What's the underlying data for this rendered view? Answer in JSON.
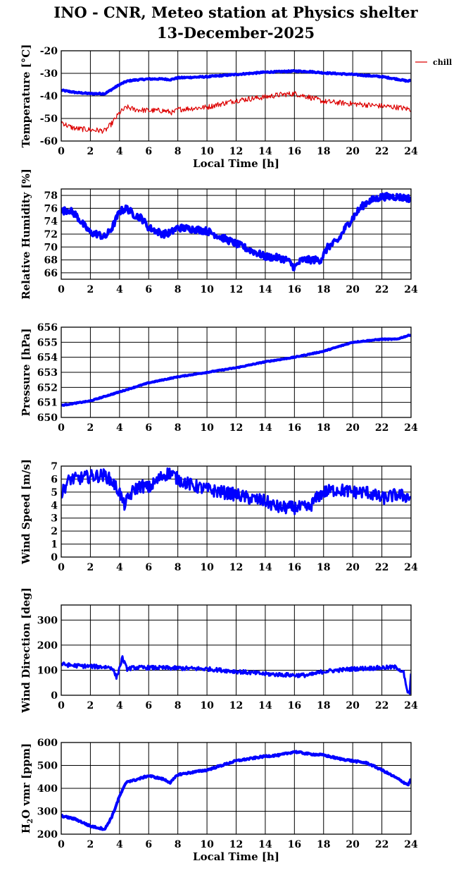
{
  "title_line1": "INO - CNR, Meteo station at Physics shelter",
  "title_line2": "13-December-2025",
  "colors": {
    "series": "#0000ff",
    "chill": "#dd0000",
    "grid": "#000000"
  },
  "chart_data": [
    {
      "id": "temperature",
      "type": "line",
      "ylabel": "Temperature [°C]",
      "xlabel": "Local Time [h]",
      "xlim": [
        0,
        24
      ],
      "xticks": [
        0,
        2,
        4,
        6,
        8,
        10,
        12,
        14,
        16,
        18,
        20,
        22,
        24
      ],
      "ylim": [
        -60,
        -20
      ],
      "yticks": [
        -60,
        -50,
        -40,
        -30,
        -20
      ],
      "legend": [
        "chill"
      ],
      "series": [
        {
          "name": "temperature",
          "color": "#0000ff",
          "width": 4,
          "noise": 0.3,
          "x": [
            0,
            1,
            2,
            3,
            3.5,
            4,
            4.5,
            5,
            6,
            7,
            7.5,
            8,
            10,
            12,
            14,
            16,
            17,
            18,
            20,
            22,
            23,
            23.8,
            24
          ],
          "y": [
            -37.5,
            -38.5,
            -39,
            -39,
            -37,
            -35,
            -33.5,
            -33,
            -32.5,
            -32.5,
            -32.8,
            -32,
            -31.5,
            -30.5,
            -29.5,
            -29,
            -29.2,
            -29.8,
            -30.5,
            -31.5,
            -32.5,
            -33.5,
            -33
          ]
        },
        {
          "name": "chill",
          "color": "#dd0000",
          "width": 1.2,
          "noise": 1.2,
          "x": [
            0,
            0.5,
            1,
            2,
            3,
            3.5,
            4,
            4.5,
            5,
            6,
            7,
            7.7,
            8,
            10,
            12,
            14,
            15,
            16,
            17,
            18,
            20,
            22,
            23,
            24
          ],
          "y": [
            -51.5,
            -53.5,
            -54.5,
            -55,
            -55.5,
            -52,
            -47.5,
            -45,
            -46,
            -46.5,
            -46.5,
            -47.5,
            -46,
            -45,
            -42,
            -40.5,
            -39.5,
            -39,
            -40.5,
            -42.5,
            -43.5,
            -44.5,
            -45,
            -46
          ]
        }
      ]
    },
    {
      "id": "humidity",
      "type": "line",
      "ylabel": "Relative Humidity [%]",
      "xlim": [
        0,
        24
      ],
      "xticks": [
        0,
        2,
        4,
        6,
        8,
        10,
        12,
        14,
        16,
        18,
        20,
        22,
        24
      ],
      "ylim": [
        65,
        79
      ],
      "yticks": [
        66,
        68,
        70,
        72,
        74,
        76,
        78
      ],
      "series": [
        {
          "name": "humidity",
          "color": "#0000ff",
          "width": 4,
          "noise": 0.55,
          "x": [
            0,
            0.5,
            1,
            1.5,
            2,
            2.5,
            3,
            3.5,
            4,
            4.5,
            5,
            5.5,
            6,
            7,
            7.5,
            8,
            9,
            10,
            11,
            12,
            13,
            14,
            15,
            15.5,
            16,
            16.5,
            17,
            17.8,
            18.3,
            19,
            19.5,
            20,
            20.5,
            21,
            22,
            23,
            24
          ],
          "y": [
            75.5,
            75.8,
            75,
            73.5,
            72.2,
            72,
            71.5,
            73,
            75.5,
            76,
            75,
            74.5,
            73,
            72,
            72.2,
            73,
            72.8,
            72.5,
            71.5,
            70.5,
            69.5,
            68.5,
            68.3,
            68,
            66.8,
            68,
            68,
            68,
            70,
            71,
            73,
            74.5,
            76,
            77,
            77.8,
            77.8,
            77.5
          ]
        }
      ]
    },
    {
      "id": "pressure",
      "type": "line",
      "ylabel": "Pressure [hPa]",
      "xlim": [
        0,
        24
      ],
      "xticks": [
        0,
        2,
        4,
        6,
        8,
        10,
        12,
        14,
        16,
        18,
        20,
        22,
        24
      ],
      "ylim": [
        650,
        656
      ],
      "yticks": [
        650,
        651,
        652,
        653,
        654,
        655,
        656
      ],
      "series": [
        {
          "name": "pressure",
          "color": "#0000ff",
          "width": 4,
          "noise": 0.03,
          "x": [
            0,
            2,
            4,
            6,
            8,
            10,
            12,
            14,
            16,
            18,
            19,
            20,
            22,
            23,
            24
          ],
          "y": [
            650.8,
            651.1,
            651.7,
            652.3,
            652.7,
            653,
            653.3,
            653.7,
            654,
            654.4,
            654.7,
            655,
            655.2,
            655.2,
            655.5
          ]
        }
      ]
    },
    {
      "id": "wind_speed",
      "type": "line",
      "ylabel": "Wind Speed [m/s]",
      "xlim": [
        0,
        24
      ],
      "xticks": [
        0,
        2,
        4,
        6,
        8,
        10,
        12,
        14,
        16,
        18,
        20,
        22,
        24
      ],
      "ylim": [
        0,
        7
      ],
      "yticks": [
        0,
        1,
        2,
        3,
        4,
        5,
        6,
        7
      ],
      "series": [
        {
          "name": "wind speed",
          "color": "#0000ff",
          "width": 3,
          "noise": 0.5,
          "x": [
            0,
            0.3,
            0.6,
            1,
            2,
            3,
            3.5,
            4,
            4.3,
            4.6,
            5,
            5.5,
            6,
            6.5,
            7,
            7.5,
            8,
            9,
            10,
            11,
            12,
            13,
            14,
            14.5,
            15,
            16,
            17,
            17.5,
            18,
            19,
            20,
            21,
            22,
            23,
            24
          ],
          "y": [
            4.8,
            5.5,
            6,
            6,
            6.2,
            6.3,
            5.8,
            5,
            4,
            4.5,
            5.2,
            5.5,
            5.3,
            5.8,
            6.3,
            6.5,
            6,
            5.5,
            5.2,
            5,
            4.8,
            4.5,
            4.3,
            4,
            3.8,
            3.8,
            3.8,
            4.5,
            5,
            5.2,
            5,
            5,
            4.5,
            4.8,
            4.6
          ]
        }
      ]
    },
    {
      "id": "wind_direction",
      "type": "line",
      "ylabel": "Wind Direction [deg]",
      "xlim": [
        0,
        24
      ],
      "xticks": [
        0,
        2,
        4,
        6,
        8,
        10,
        12,
        14,
        16,
        18,
        20,
        22,
        24
      ],
      "ylim": [
        0,
        360
      ],
      "yticks": [
        0,
        100,
        200,
        300
      ],
      "series": [
        {
          "name": "wind direction",
          "color": "#0000ff",
          "width": 3,
          "noise": 8,
          "x": [
            0,
            0.5,
            1,
            2,
            3,
            3.5,
            3.8,
            4,
            4.2,
            4.5,
            5,
            6,
            8,
            10,
            12,
            14,
            16,
            17,
            18,
            20,
            22,
            23,
            23.5,
            23.7,
            23.9,
            24
          ],
          "y": [
            125,
            120,
            118,
            115,
            113,
            110,
            70,
            110,
            150,
            105,
            110,
            110,
            108,
            105,
            95,
            85,
            80,
            80,
            95,
            105,
            110,
            112,
            90,
            20,
            5,
            80
          ]
        }
      ]
    },
    {
      "id": "h2o_vmr",
      "type": "line",
      "ylabel": "H2O vmr [ppm]",
      "xlabel": "Local Time [h]",
      "xlim": [
        0,
        24
      ],
      "xticks": [
        0,
        2,
        4,
        6,
        8,
        10,
        12,
        14,
        16,
        18,
        20,
        22,
        24
      ],
      "ylim": [
        200,
        600
      ],
      "yticks": [
        200,
        300,
        400,
        500,
        600
      ],
      "series": [
        {
          "name": "h2o vmr",
          "color": "#0000ff",
          "width": 4,
          "noise": 4,
          "x": [
            0,
            1,
            2,
            3,
            3.5,
            4,
            4.5,
            5,
            6,
            7,
            7.5,
            8,
            9,
            10,
            11,
            12,
            13,
            14,
            15,
            16,
            17,
            18,
            19,
            20,
            21,
            22,
            23,
            23.8,
            24
          ],
          "y": [
            280,
            265,
            235,
            222,
            280,
            365,
            430,
            435,
            455,
            440,
            425,
            460,
            470,
            480,
            500,
            520,
            530,
            540,
            545,
            560,
            550,
            545,
            530,
            520,
            510,
            480,
            445,
            415,
            440
          ]
        }
      ]
    }
  ]
}
